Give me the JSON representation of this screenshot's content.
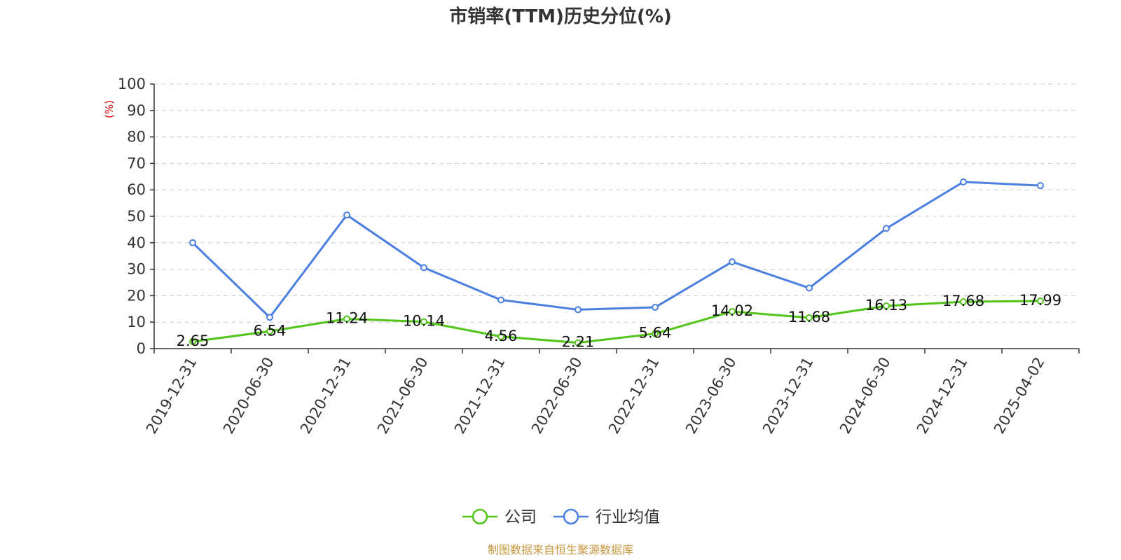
{
  "colors": {
    "company": "#52c41a",
    "industry": "#4a7fe0",
    "unit_label": "#e00000",
    "source": "#c8963e",
    "grid": "#cccccc",
    "axis": "#333333"
  },
  "chart_data": {
    "type": "line",
    "title": "市销率(TTM)历史分位(%)",
    "ylabel": "(%)",
    "xlabel": "",
    "ylim": [
      0,
      100
    ],
    "yticks": [
      0,
      10,
      20,
      30,
      40,
      50,
      60,
      70,
      80,
      90,
      100
    ],
    "grid": true,
    "legend_position": "bottom-center",
    "categories": [
      "2019-12-31",
      "2020-06-30",
      "2020-12-31",
      "2021-06-30",
      "2021-12-31",
      "2022-06-30",
      "2022-12-31",
      "2023-06-30",
      "2023-12-31",
      "2024-06-30",
      "2024-12-31",
      "2025-04-02"
    ],
    "series": [
      {
        "name": "公司",
        "values": [
          2.65,
          6.54,
          11.24,
          10.14,
          4.56,
          2.21,
          5.64,
          14.02,
          11.68,
          16.13,
          17.68,
          17.99
        ],
        "data_labels": [
          "2.65",
          "6.54",
          "11.24",
          "10.14",
          "4.56",
          "2.21",
          "5.64",
          "14.02",
          "11.68",
          "16.13",
          "17.68",
          "17.99"
        ]
      },
      {
        "name": "行业均值",
        "values": [
          40.0,
          11.8,
          50.5,
          30.6,
          18.4,
          14.7,
          15.6,
          32.8,
          22.9,
          45.4,
          63.0,
          61.6
        ]
      }
    ]
  },
  "source": "制图数据来自恒生聚源数据库"
}
